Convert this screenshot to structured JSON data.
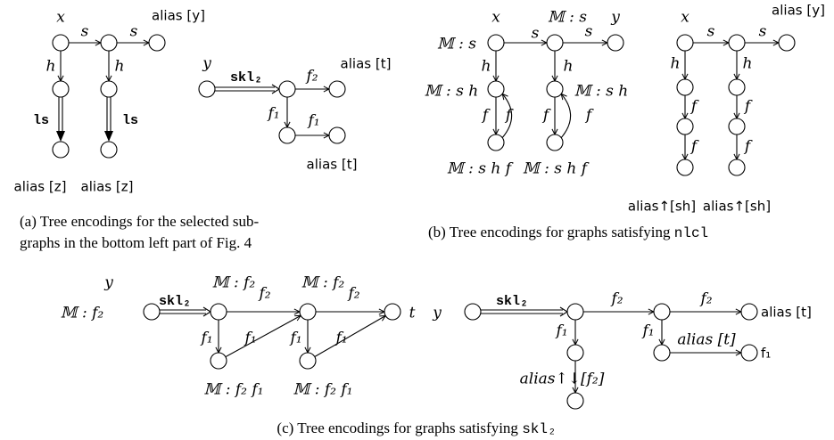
{
  "a": {
    "labels": [
      "x",
      "s",
      "s",
      "alias [y]",
      "h",
      "h",
      "ls",
      "ls",
      "alias [z]",
      "alias [z]",
      "y",
      "skl₂",
      "f₂",
      "alias [t]",
      "f₁",
      "f₁",
      "alias [t]"
    ],
    "caption": [
      "(a) Tree encodings for the selected sub-",
      "graphs in the bottom left part of Fig. 4"
    ]
  },
  "b": {
    "labels": [
      "x",
      "𝕄 : s",
      "s",
      "𝕄 : s",
      "s",
      "y",
      "h",
      "h",
      "𝕄 : s h",
      "𝕄 : s h",
      "f",
      "f",
      "f",
      "f",
      "𝕄 : s h f",
      "𝕄 : s h f",
      "x",
      "s",
      "s",
      "alias [y]",
      "h",
      "h",
      "f",
      "f",
      "f",
      "f",
      "alias↑[sh]",
      "alias↑[sh]"
    ],
    "caption": [
      "(b) Tree encodings for graphs satisfying ",
      "nlcl"
    ]
  },
  "c": {
    "labels": [
      "y",
      "𝕄 : f₂",
      "skl₂",
      "𝕄 : f₂",
      "f₂",
      "𝕄 : f₂",
      "f₂",
      "t",
      "f₁",
      "f₁",
      "f₁",
      "f₁",
      "𝕄 : f₂ f₁",
      "𝕄 : f₂ f₁",
      "y",
      "skl₂",
      "f₂",
      "f₂",
      "alias [t]",
      "f₁",
      "f₁",
      "alias [t]",
      "f₁",
      "alias↑↓[f₂]"
    ],
    "caption": [
      "(c) Tree encodings for graphs satisfying ",
      "skl₂"
    ]
  }
}
